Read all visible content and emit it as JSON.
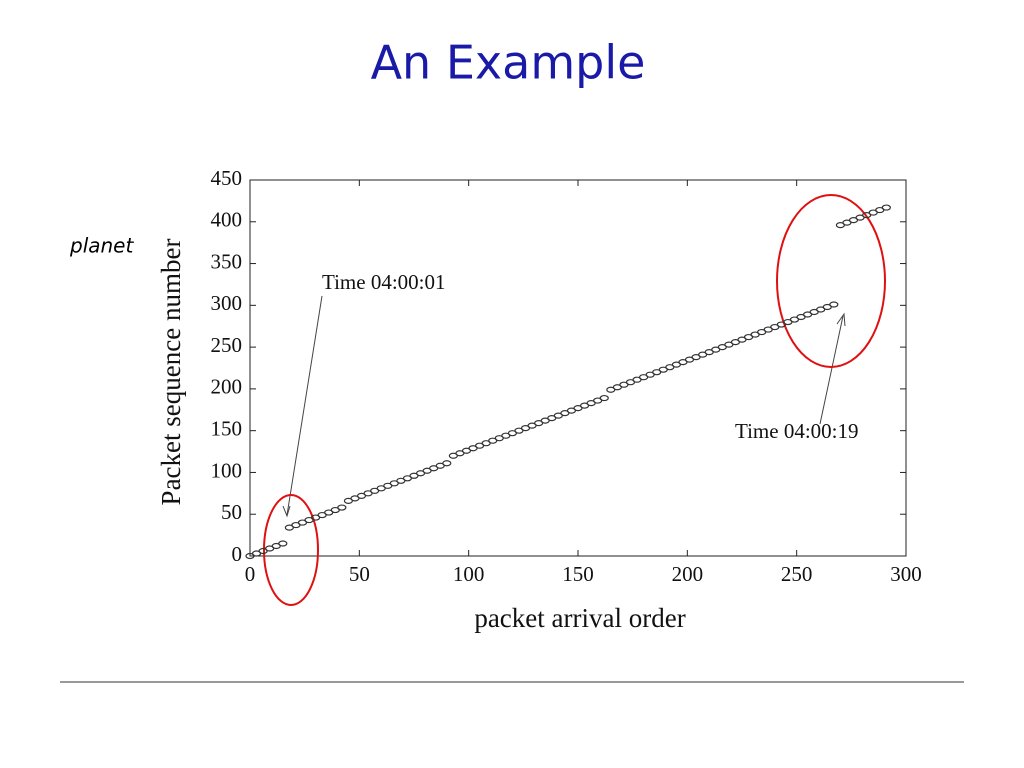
{
  "side_text": "planet",
  "chart_data": {
    "type": "scatter",
    "title": "An Example",
    "xlabel": "packet arrival order",
    "ylabel": "Packet sequence number",
    "annotations": [
      "Time 04:00:01",
      "Time 04:00:19"
    ],
    "color": "#333333",
    "x": [
      0,
      3,
      6,
      9,
      12,
      15,
      18,
      21,
      24,
      27,
      30,
      33,
      36,
      39,
      42,
      45,
      48,
      51,
      54,
      57,
      60,
      63,
      66,
      69,
      72,
      75,
      78,
      81,
      84,
      87,
      90,
      93,
      96,
      99,
      102,
      105,
      108,
      111,
      114,
      117,
      120,
      123,
      126,
      129,
      132,
      135,
      138,
      141,
      144,
      147,
      150,
      153,
      156,
      159,
      162,
      165,
      168,
      171,
      174,
      177,
      180,
      183,
      186,
      189,
      192,
      195,
      198,
      201,
      204,
      207,
      210,
      213,
      216,
      219,
      222,
      225,
      228,
      231,
      234,
      237,
      240,
      243,
      246,
      249,
      252,
      255,
      258,
      261,
      264,
      267,
      270,
      273,
      276,
      279,
      282,
      285,
      288,
      291
    ],
    "values": [
      0,
      3,
      6,
      9,
      12,
      15,
      34,
      37,
      40,
      43,
      46,
      49,
      52,
      55,
      58,
      66,
      69,
      72,
      75,
      78,
      81,
      84,
      87,
      90,
      93,
      96,
      99,
      102,
      105,
      108,
      111,
      120,
      123,
      126,
      129,
      132,
      135,
      138,
      141,
      144,
      147,
      150,
      153,
      156,
      159,
      162,
      165,
      168,
      171,
      174,
      177,
      180,
      183,
      186,
      189,
      199,
      202,
      205,
      208,
      211,
      214,
      217,
      220,
      223,
      226,
      229,
      232,
      235,
      238,
      241,
      244,
      247,
      250,
      253,
      256,
      259,
      262,
      265,
      268,
      271,
      274,
      277,
      280,
      283,
      286,
      289,
      292,
      295,
      298,
      301,
      396,
      399,
      402,
      405,
      408,
      411,
      414,
      417
    ],
    "xlim": [
      0,
      300
    ],
    "ylim": [
      0,
      450
    ],
    "xticks": [
      0,
      50,
      100,
      150,
      200,
      250,
      300
    ],
    "yticks": [
      0,
      50,
      100,
      150,
      200,
      250,
      300,
      350,
      400,
      450
    ]
  }
}
